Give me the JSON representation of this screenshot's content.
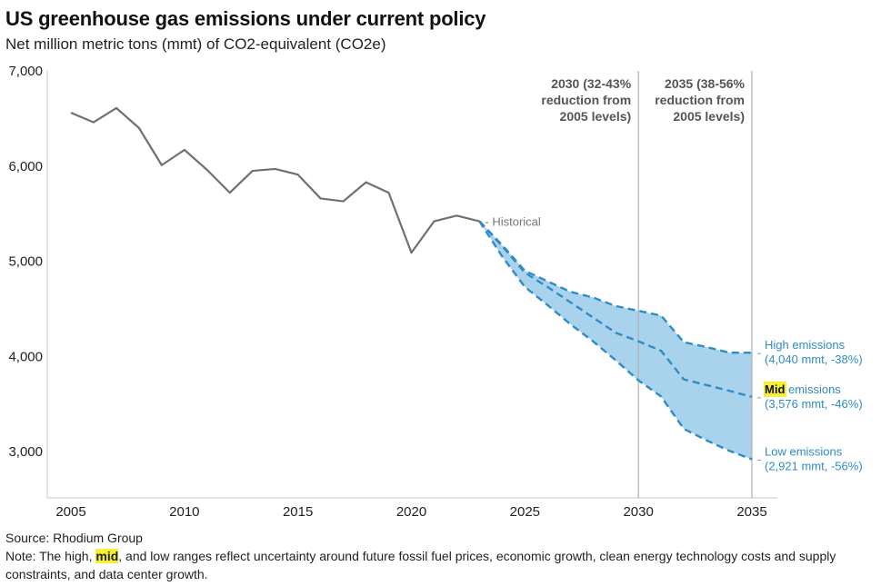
{
  "header": {
    "title": "US greenhouse gas emissions under current policy",
    "subtitle": "Net million metric tons (mmt) of CO2-equivalent (CO2e)"
  },
  "footer": {
    "source": "Source: Rhodium Group",
    "note_prefix": "Note: The high, ",
    "note_highlight": "mid",
    "note_suffix": ", and low ranges reflect uncertainty around future fossil fuel prices, economic growth, clean energy technology costs and supply constraints, and data center growth."
  },
  "colors": {
    "historical": "#707070",
    "projection": "#2f8cc5",
    "band_fill": "#a9d2ec",
    "highlight": "#f5f032",
    "reference_line": "#b0b0b0"
  },
  "chart_data": {
    "type": "line",
    "title": "US greenhouse gas emissions under current policy",
    "subtitle": "Net million metric tons (mmt) of CO2-equivalent (CO2e)",
    "xlabel": "",
    "ylabel": "",
    "xlim": [
      2004,
      2036
    ],
    "ylim": [
      2520,
      7000
    ],
    "grid": false,
    "x_ticks": [
      2005,
      2010,
      2015,
      2020,
      2025,
      2030,
      2035
    ],
    "x_tick_labels": [
      "2005",
      "2010",
      "2015",
      "2020",
      "2025",
      "2030",
      "2035"
    ],
    "y_ticks": [
      3000,
      4000,
      5000,
      6000,
      7000
    ],
    "y_tick_labels": [
      "3,000",
      "4,000",
      "5,000",
      "6,000",
      "7,000"
    ],
    "series": [
      {
        "name": "Historical",
        "label": "Historical",
        "style": "solid",
        "x": [
          2005,
          2006,
          2007,
          2008,
          2009,
          2010,
          2011,
          2012,
          2013,
          2014,
          2015,
          2016,
          2017,
          2018,
          2019,
          2020,
          2021,
          2022,
          2023
        ],
        "values": [
          6560,
          6460,
          6610,
          6400,
          6010,
          6170,
          5960,
          5720,
          5950,
          5970,
          5910,
          5660,
          5630,
          5830,
          5720,
          5090,
          5420,
          5480,
          5420
        ]
      },
      {
        "name": "High emissions",
        "label_line1": "High emissions",
        "label_line2": "(4,040 mmt, -38%)",
        "style": "dashed",
        "x": [
          2023,
          2024,
          2025,
          2026,
          2027,
          2028,
          2029,
          2030,
          2031,
          2032,
          2033,
          2034,
          2035
        ],
        "values": [
          5420,
          5170,
          4900,
          4790,
          4680,
          4620,
          4530,
          4480,
          4430,
          4150,
          4100,
          4040,
          4040
        ]
      },
      {
        "name": "Mid emissions",
        "label_highlight": "Mid",
        "label_line1_rest": " emissions",
        "label_line2": "(3,576 mmt, -46%)",
        "style": "dashed",
        "x": [
          2023,
          2024,
          2025,
          2026,
          2027,
          2028,
          2029,
          2030,
          2031,
          2032,
          2033,
          2034,
          2035
        ],
        "values": [
          5420,
          5160,
          4880,
          4730,
          4570,
          4410,
          4250,
          4160,
          4060,
          3760,
          3700,
          3640,
          3576
        ]
      },
      {
        "name": "Low emissions",
        "label_line1": "Low emissions",
        "label_line2": "(2,921 mmt, -56%)",
        "style": "dashed",
        "x": [
          2023,
          2024,
          2025,
          2026,
          2027,
          2028,
          2029,
          2030,
          2031,
          2032,
          2033,
          2034,
          2035
        ],
        "values": [
          5420,
          5050,
          4730,
          4540,
          4340,
          4160,
          3960,
          3750,
          3580,
          3240,
          3120,
          3010,
          2921
        ]
      }
    ],
    "reference_lines": [
      {
        "x": 2030,
        "lines": [
          "2030 (32-43%",
          "reduction from",
          "2005 levels)"
        ]
      },
      {
        "x": 2035,
        "lines": [
          "2035 (38-56%",
          "reduction from",
          "2005 levels)"
        ]
      }
    ],
    "band": {
      "between": [
        "High emissions",
        "Low emissions"
      ]
    }
  }
}
